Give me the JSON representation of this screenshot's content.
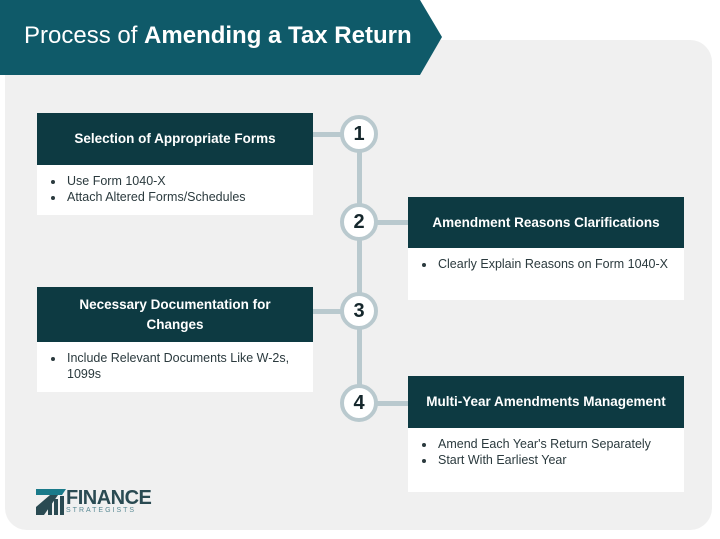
{
  "title": {
    "regular": "Process of ",
    "bold": "Amending a Tax Return"
  },
  "colors": {
    "banner": "#0f5a69",
    "header": "#0d3a42",
    "connector": "#b9c9ce",
    "panel": "#f0f0f0"
  },
  "steps": [
    {
      "number": "1",
      "heading": "Selection of Appropriate Forms",
      "bullets": [
        "Use Form 1040-X",
        "Attach Altered Forms/Schedules"
      ]
    },
    {
      "number": "2",
      "heading": "Amendment Reasons Clarifications",
      "bullets": [
        "Clearly Explain Reasons on Form 1040-X"
      ]
    },
    {
      "number": "3",
      "heading": "Necessary Documentation for Changes",
      "bullets": [
        "Include Relevant Documents Like W-2s, 1099s"
      ]
    },
    {
      "number": "4",
      "heading": "Multi-Year Amendments Management",
      "bullets": [
        "Amend Each Year's Return Separately",
        "Start With Earliest Year"
      ]
    }
  ],
  "logo": {
    "line1": "FINANCE",
    "line2": "STRATEGISTS"
  }
}
